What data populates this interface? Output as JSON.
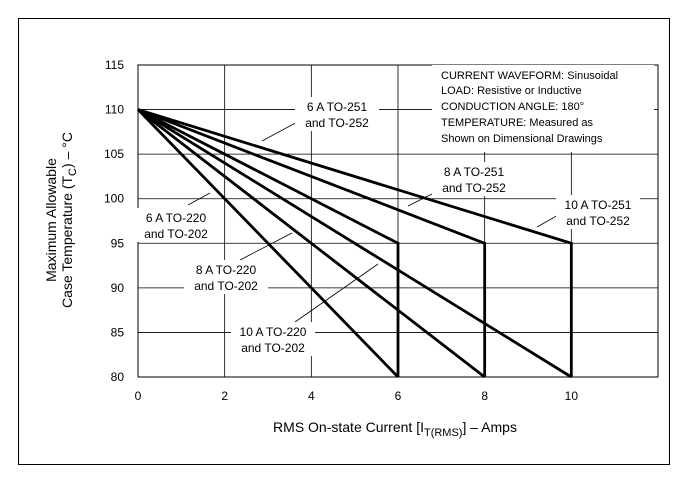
{
  "chart_data": {
    "type": "line",
    "xlabel": "RMS On-state Current [I",
    "xlabel_sub": "T(RMS)",
    "xlabel_end": "] – Amps",
    "ylabel_line1": "Maximum Allowable",
    "ylabel_line2_pre": "Case Temperature (T",
    "ylabel_line2_sub": "C",
    "ylabel_line2_post": ") – °C",
    "xlim": [
      0,
      12
    ],
    "ylim": [
      80,
      115
    ],
    "x_ticks": [
      0,
      2,
      4,
      6,
      8,
      10
    ],
    "y_ticks": [
      80,
      85,
      90,
      95,
      100,
      105,
      110,
      115
    ],
    "grid": true,
    "notes": [
      "CURRENT WAVEFORM: Sinusoidal",
      "LOAD: Resistive or Inductive",
      "CONDUCTION ANGLE: 180°",
      "TEMPERATURE: Measured as",
      "Shown on Dimensional Drawings"
    ],
    "series": [
      {
        "name": "6 A TO-220 and TO-202",
        "label_lines": [
          "6 A TO-220",
          "and TO-202"
        ],
        "x": [
          0,
          6
        ],
        "y": [
          110,
          80
        ]
      },
      {
        "name": "8 A TO-220 and TO-202",
        "label_lines": [
          "8 A TO-220",
          "and TO-202"
        ],
        "x": [
          0,
          8
        ],
        "y": [
          110,
          80
        ]
      },
      {
        "name": "10 A TO-220 and TO-202",
        "label_lines": [
          "10 A TO-220",
          "and TO-202"
        ],
        "x": [
          0,
          10
        ],
        "y": [
          110,
          80
        ]
      },
      {
        "name": "6 A TO-251 and TO-252",
        "label_lines": [
          "6 A TO-251",
          "and TO-252"
        ],
        "x": [
          0,
          6,
          6
        ],
        "y": [
          110,
          95,
          80
        ]
      },
      {
        "name": "8 A TO-251 and TO-252",
        "label_lines": [
          "8 A TO-251",
          "and TO-252"
        ],
        "x": [
          0,
          8,
          8
        ],
        "y": [
          110,
          95,
          80
        ]
      },
      {
        "name": "10 A TO-251 and TO-252",
        "label_lines": [
          "10 A TO-251",
          "and TO-252"
        ],
        "x": [
          0,
          10,
          10
        ],
        "y": [
          110,
          95,
          80
        ]
      }
    ]
  }
}
